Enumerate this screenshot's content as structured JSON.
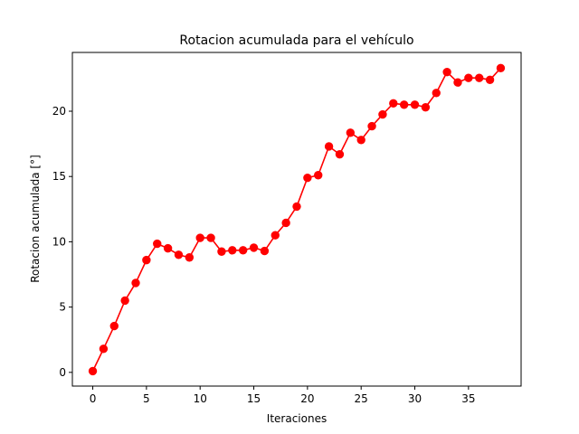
{
  "chart_data": {
    "type": "line",
    "title": "Rotacion acumulada para el vehículo",
    "xlabel": "Iteraciones",
    "ylabel": "Rotacion acumulada [°]",
    "xlim": [
      -1.9,
      39.9
    ],
    "ylim": [
      -1.05,
      24.5
    ],
    "xticks": [
      0,
      5,
      10,
      15,
      20,
      25,
      30,
      35
    ],
    "yticks": [
      0,
      5,
      10,
      15,
      20
    ],
    "grid": false,
    "series": [
      {
        "color": "#ff0000",
        "marker": "circle",
        "x": [
          0,
          1,
          2,
          3,
          4,
          5,
          6,
          7,
          8,
          9,
          10,
          11,
          12,
          13,
          14,
          15,
          16,
          17,
          18,
          19,
          20,
          21,
          22,
          23,
          24,
          25,
          26,
          27,
          28,
          29,
          30,
          31,
          32,
          33,
          34,
          35,
          36,
          37,
          38
        ],
        "y": [
          0.1,
          1.8,
          3.55,
          5.5,
          6.85,
          8.6,
          9.85,
          9.5,
          9.0,
          8.8,
          10.3,
          10.3,
          9.25,
          9.35,
          9.35,
          9.55,
          9.3,
          10.5,
          11.45,
          12.7,
          14.9,
          15.1,
          17.3,
          16.7,
          18.35,
          17.8,
          18.85,
          19.75,
          20.6,
          20.5,
          20.5,
          20.3,
          21.4,
          23.0,
          22.2,
          22.55,
          22.55,
          22.4,
          23.3
        ]
      }
    ]
  }
}
